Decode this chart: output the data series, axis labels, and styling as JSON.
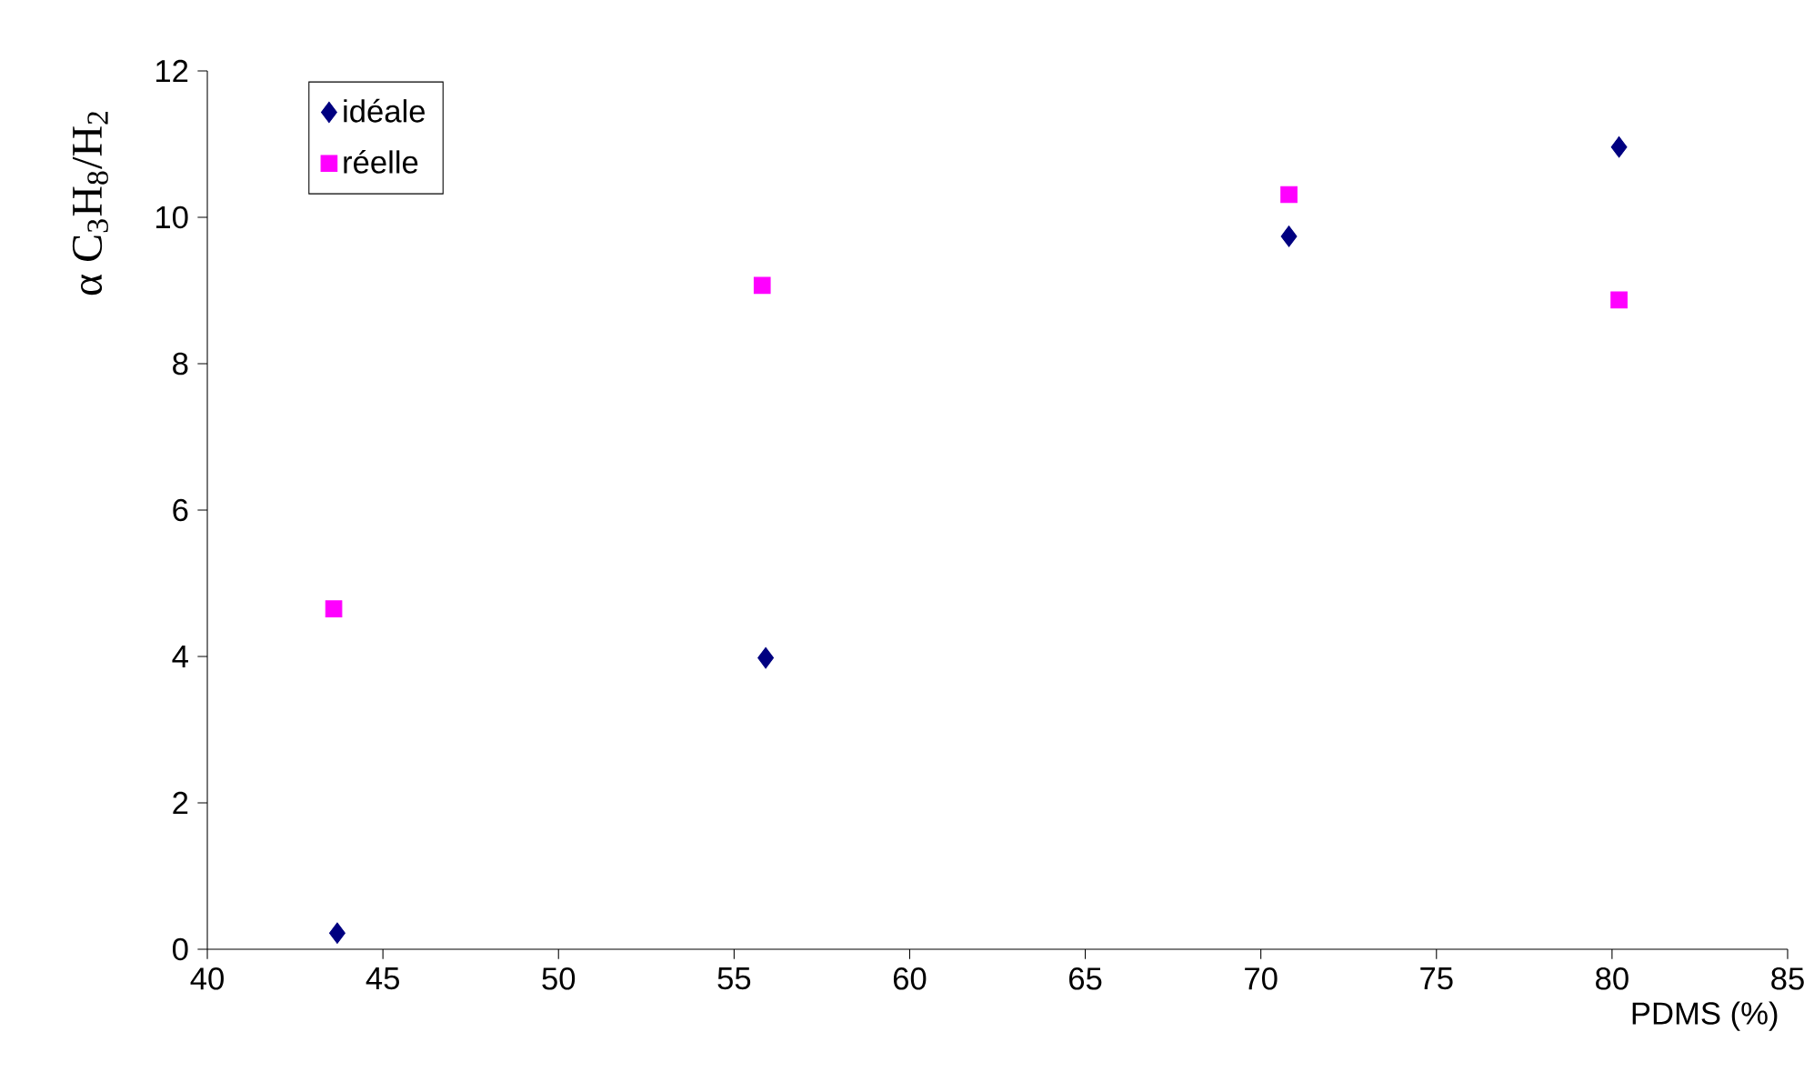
{
  "chart_data": {
    "type": "scatter",
    "xlabel": "PDMS (%)",
    "ylabel": "α C$_{3}$H$_{8}$/H$_{2}$",
    "xlim": [
      40,
      85
    ],
    "xticks": [
      40,
      45,
      50,
      55,
      60,
      65,
      70,
      75,
      80,
      85
    ],
    "ylim": [
      0,
      12
    ],
    "yticks": [
      0,
      2,
      4,
      6,
      8,
      10,
      12
    ],
    "grid": false,
    "legend": "top left",
    "series": [
      {
        "name": "idéale",
        "color": "#000080",
        "marker": "diamond",
        "x": [
          43.7,
          55.9,
          70.8,
          80.2
        ],
        "values": [
          0.22,
          3.98,
          9.74,
          10.96
        ]
      },
      {
        "name": "réelle",
        "color": "#ff00ff",
        "marker": "square",
        "x": [
          43.6,
          55.8,
          70.8,
          80.2
        ],
        "values": [
          4.65,
          9.07,
          10.31,
          8.87
        ]
      }
    ]
  }
}
